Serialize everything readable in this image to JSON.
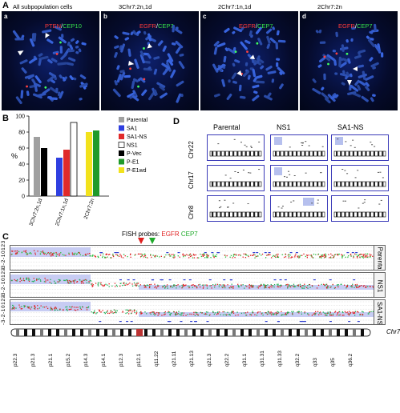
{
  "panel_A": {
    "letter": "A",
    "images": [
      {
        "sub": "a",
        "caption_plain": "All subpopulation cells",
        "probe_red": "",
        "probe_sep": "",
        "probe_green": ""
      },
      {
        "sub": "b",
        "caption_plain": "3Chr7:2n,1d",
        "probe_red": "EGFR",
        "probe_sep": "/",
        "probe_green": "CEP7"
      },
      {
        "sub": "c",
        "caption_plain": "2Chr7:1n,1d",
        "probe_red": "EGFR",
        "probe_sep": "/",
        "probe_green": "CEP7"
      },
      {
        "sub": "d",
        "caption_plain": "2Chr7:2n",
        "probe_red": "EGFR",
        "probe_sep": "/",
        "probe_green": "CEP7"
      }
    ],
    "a_probe_red": "PTEN",
    "a_probe_sep": "/",
    "a_probe_green": "CEP10"
  },
  "panel_B": {
    "letter": "B",
    "ylabel": "%",
    "legend": [
      {
        "name": "Parental",
        "color": "#a0a0a0"
      },
      {
        "name": "SA1",
        "color": "#2f3fe0"
      },
      {
        "name": "SA1-NS",
        "color": "#e02a2a"
      },
      {
        "name": "NS1",
        "color": "#ffffff"
      },
      {
        "name": "P-Vec",
        "color": "#000000"
      },
      {
        "name": "P-E1",
        "color": "#1f9a2a"
      },
      {
        "name": "P-E1wd",
        "color": "#f2e21c"
      }
    ]
  },
  "chart_data": {
    "type": "bar",
    "categories": [
      "3Chr7:2n,1d",
      "2Chr7:1n,1d",
      "2Chr7:2n"
    ],
    "ylim": [
      0,
      100
    ],
    "ylabel": "%",
    "groups": [
      {
        "category": "3Chr7:2n,1d",
        "bars": [
          {
            "series": "Parental",
            "value": 74
          },
          {
            "series": "P-Vec",
            "value": 60
          }
        ]
      },
      {
        "category": "2Chr7:1n,1d",
        "bars": [
          {
            "series": "SA1",
            "value": 48
          },
          {
            "series": "SA1-NS",
            "value": 58
          },
          {
            "series": "NS1",
            "value": 92
          }
        ]
      },
      {
        "category": "2Chr7:2n",
        "bars": [
          {
            "series": "P-E1wd",
            "value": 80
          },
          {
            "series": "P-E1",
            "value": 82
          }
        ]
      }
    ],
    "grid": false
  },
  "panel_C": {
    "letter": "C",
    "probes_label": "FISH probes:",
    "probe_red": "EGFR",
    "probe_green": "CEP7",
    "y_ticks": [
      "-3",
      "-2",
      "-1",
      "0",
      "1",
      "2",
      "3"
    ],
    "tracks": [
      "Parental",
      "NS1",
      "SA1-NS"
    ],
    "chromosome": "Chr7",
    "bands": [
      "p22.3",
      "p21.3",
      "p21.1",
      "p15.2",
      "p14.3",
      "p14.1",
      "p12.3",
      "p12.1",
      "q11.22",
      "q21.11",
      "q21.13",
      "q21.3",
      "q22.2",
      "q31.1",
      "q31.31",
      "q31.33",
      "q32.2",
      "q33",
      "q35",
      "q36.2"
    ]
  },
  "panel_D": {
    "letter": "D",
    "columns": [
      "Parental",
      "NS1",
      "SA1-NS"
    ],
    "rows": [
      "Chr22",
      "Chr17",
      "Chr8"
    ]
  }
}
